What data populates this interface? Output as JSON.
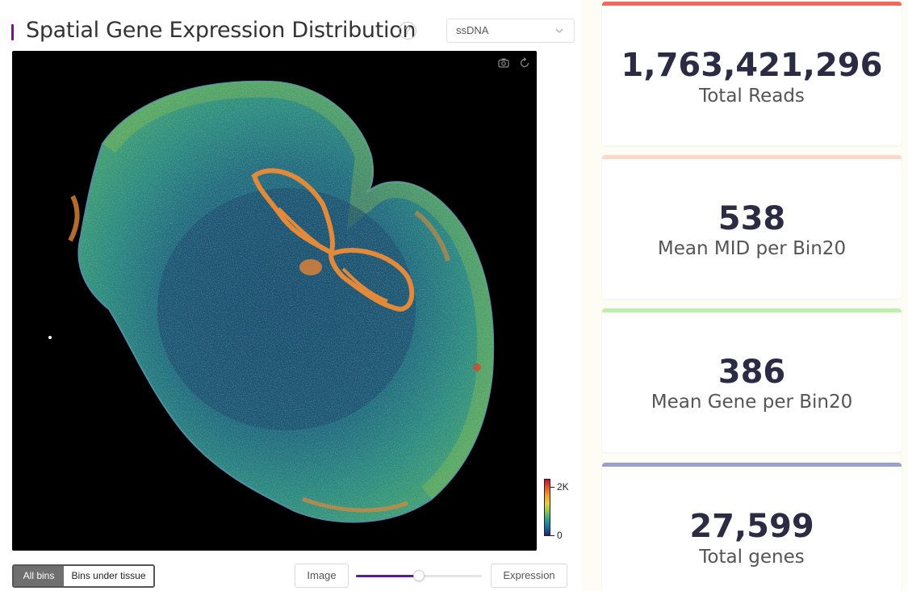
{
  "header": {
    "title": "Spatial Gene Expression Distribution",
    "help_icon": "question-circle-icon",
    "select_value": "ssDNA"
  },
  "canvas": {
    "tools": [
      "camera-icon",
      "reset-icon"
    ],
    "colorbar": {
      "max_label": "2K",
      "min_label": "0",
      "colors": [
        "#b2182b",
        "#e8542b",
        "#f4a02a",
        "#e6d03a",
        "#88c84f",
        "#2aa58c",
        "#1c6aa0",
        "#1a2470"
      ]
    }
  },
  "controls": {
    "bin_toggle": {
      "active": "All bins",
      "inactive": "Bins under tissue"
    },
    "image_button": "Image",
    "expression_button": "Expression",
    "blend_slider_value": 0.5
  },
  "stats": [
    {
      "value": "1,763,421,296",
      "label": "Total Reads",
      "accent": "#f0685a"
    },
    {
      "value": "538",
      "label": "Mean MID per Bin20",
      "accent": "#fbd9c6"
    },
    {
      "value": "386",
      "label": "Mean Gene per Bin20",
      "accent": "#bdf0ab"
    },
    {
      "value": "27,599",
      "label": "Total genes",
      "accent": "#9aa0cc"
    }
  ]
}
